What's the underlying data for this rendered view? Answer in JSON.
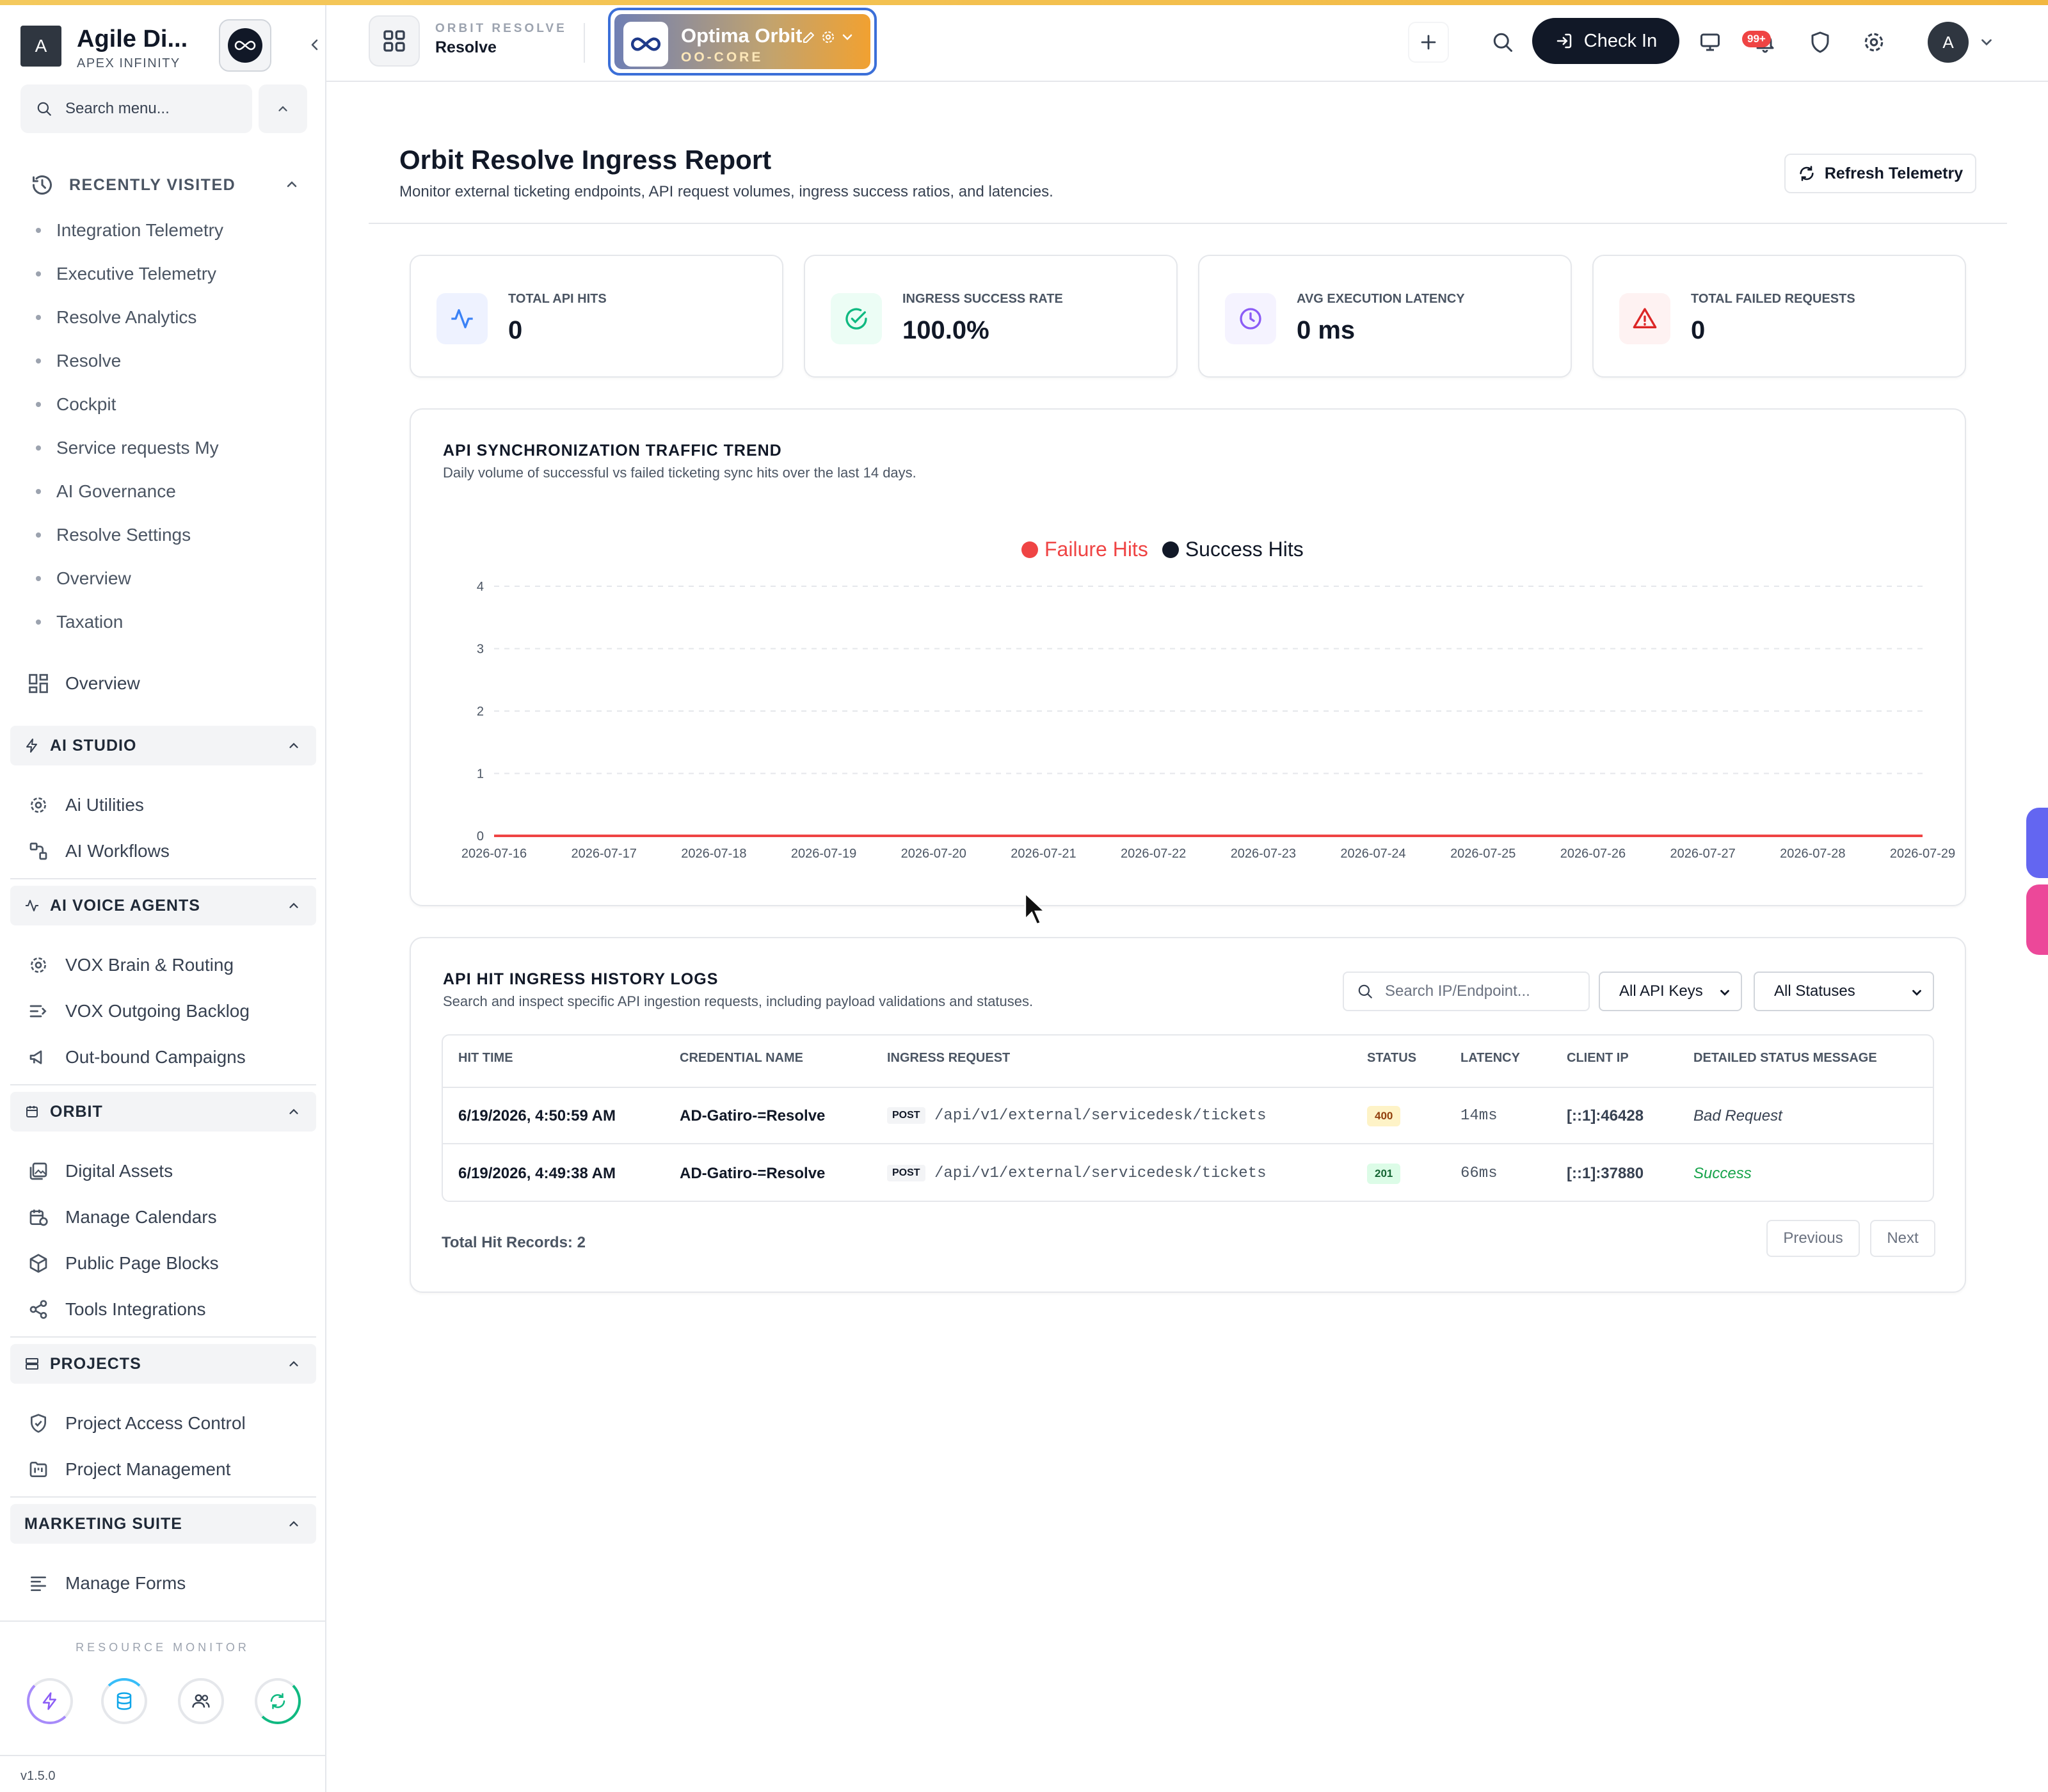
{
  "sidebar": {
    "brand_initial": "A",
    "brand_name": "Agile Di...",
    "brand_sub": "APEX INFINITY",
    "search_placeholder": "Search menu...",
    "recent_title": "RECENTLY VISITED",
    "recent_items": [
      "Integration Telemetry",
      "Executive Telemetry",
      "Resolve Analytics",
      "Resolve",
      "Cockpit",
      "Service requests My",
      "AI Governance",
      "Resolve Settings",
      "Overview",
      "Taxation"
    ],
    "overview_label": "Overview",
    "sections": {
      "ai_studio": {
        "title": "AI STUDIO",
        "items": [
          "Ai Utilities",
          "AI Workflows"
        ]
      },
      "ai_voice": {
        "title": "AI VOICE AGENTS",
        "items": [
          "VOX Brain & Routing",
          "VOX Outgoing Backlog",
          "Out-bound Campaigns"
        ]
      },
      "orbit": {
        "title": "ORBIT",
        "items": [
          "Digital Assets",
          "Manage Calendars",
          "Public Page Blocks",
          "Tools Integrations"
        ]
      },
      "projects": {
        "title": "PROJECTS",
        "items": [
          "Project Access Control",
          "Project Management"
        ]
      },
      "marketing": {
        "title": "MARKETING SUITE",
        "items": [
          "Manage Forms"
        ]
      }
    },
    "resource_monitor": "RESOURCE MONITOR",
    "version": "v1.5.0"
  },
  "header": {
    "app_sub": "ORBIT RESOLVE",
    "app_title": "Resolve",
    "org_name": "Optima Orbit",
    "org_code": "OO-CORE",
    "checkin_label": "Check In",
    "notif_badge": "99+",
    "user_initial": "A"
  },
  "page": {
    "title": "Orbit Resolve Ingress Report",
    "subtitle": "Monitor external ticketing endpoints, API request volumes, ingress success ratios, and latencies.",
    "refresh_label": "Refresh Telemetry"
  },
  "kpis": [
    {
      "label": "TOTAL API HITS",
      "value": "0"
    },
    {
      "label": "INGRESS SUCCESS RATE",
      "value": "100.0%"
    },
    {
      "label": "AVG EXECUTION LATENCY",
      "value": "0 ms"
    },
    {
      "label": "TOTAL FAILED REQUESTS",
      "value": "0"
    }
  ],
  "colors": {
    "failure": "#ef4444",
    "success": "#111827",
    "accent_blue": "#3b6fd8"
  },
  "chart_card": {
    "title": "API SYNCHRONIZATION TRAFFIC TREND",
    "subtitle": "Daily volume of successful vs failed ticketing sync hits over the last 14 days."
  },
  "chart_data": {
    "type": "line",
    "title": "",
    "xlabel": "",
    "ylabel": "",
    "x": [
      "2026-07-16",
      "2026-07-17",
      "2026-07-18",
      "2026-07-19",
      "2026-07-20",
      "2026-07-21",
      "2026-07-22",
      "2026-07-23",
      "2026-07-24",
      "2026-07-25",
      "2026-07-26",
      "2026-07-27",
      "2026-07-28",
      "2026-07-29"
    ],
    "series": [
      {
        "name": "Failure Hits",
        "values": [
          0,
          0,
          0,
          0,
          0,
          0,
          0,
          0,
          0,
          0,
          0,
          0,
          0,
          0
        ]
      },
      {
        "name": "Success Hits",
        "values": [
          0,
          0,
          0,
          0,
          0,
          0,
          0,
          0,
          0,
          0,
          0,
          0,
          0,
          0
        ]
      }
    ],
    "y_ticks": [
      "0",
      "1",
      "2",
      "3",
      "4"
    ],
    "ylim": [
      0,
      4
    ],
    "grid": true,
    "legend": "top-center"
  },
  "logs": {
    "title": "API HIT INGRESS HISTORY LOGS",
    "subtitle": "Search and inspect specific API ingestion requests, including payload validations and statuses.",
    "search_placeholder": "Search IP/Endpoint...",
    "api_keys_filter": "All API Keys",
    "status_filter": "All Statuses",
    "columns": [
      "HIT TIME",
      "CREDENTIAL NAME",
      "INGRESS REQUEST",
      "STATUS",
      "LATENCY",
      "CLIENT IP",
      "DETAILED STATUS MESSAGE"
    ],
    "rows": [
      {
        "time": "6/19/2026, 4:50:59 AM",
        "credential": "AD-Gatiro-=Resolve",
        "method": "POST",
        "path": "/api/v1/external/servicedesk/tickets",
        "status": "400",
        "latency": "14ms",
        "ip": "[::1]:46428",
        "message": "Bad Request"
      },
      {
        "time": "6/19/2026, 4:49:38 AM",
        "credential": "AD-Gatiro-=Resolve",
        "method": "POST",
        "path": "/api/v1/external/servicedesk/tickets",
        "status": "201",
        "latency": "66ms",
        "ip": "[::1]:37880",
        "message": "Success"
      }
    ],
    "total_records": "Total Hit Records: 2",
    "prev_label": "Previous",
    "next_label": "Next"
  }
}
